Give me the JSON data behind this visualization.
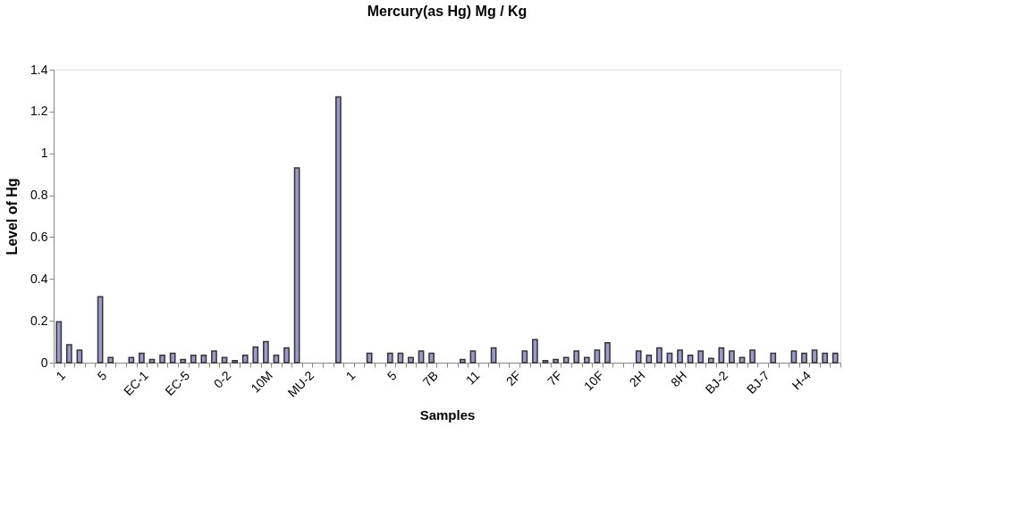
{
  "chart_data": {
    "type": "bar",
    "title": "Mercury(as Hg) Mg / Kg",
    "xlabel": "Samples",
    "ylabel": "Level of Hg",
    "categories": [
      "1",
      null,
      null,
      null,
      "5",
      null,
      null,
      null,
      "EC-1",
      null,
      null,
      null,
      "EC-5",
      null,
      null,
      null,
      "0-2",
      null,
      null,
      null,
      "10M",
      null,
      null,
      null,
      "MU-2",
      null,
      null,
      null,
      "1",
      null,
      null,
      null,
      "5",
      null,
      null,
      null,
      "7B",
      null,
      null,
      null,
      "11",
      null,
      null,
      null,
      "2F",
      null,
      null,
      null,
      "7F",
      null,
      null,
      null,
      "10F",
      null,
      null,
      null,
      "2H",
      null,
      null,
      null,
      "8H",
      null,
      null,
      null,
      "BJ-2",
      null,
      null,
      null,
      "BJ-7",
      null,
      null,
      null,
      "H-4",
      null,
      null,
      null
    ],
    "values": [
      0.195,
      0.085,
      0.06,
      null,
      0.315,
      0.025,
      null,
      0.025,
      0.045,
      0.015,
      0.035,
      0.045,
      0.015,
      0.035,
      0.035,
      0.055,
      0.025,
      0.01,
      0.035,
      0.075,
      0.1,
      0.035,
      0.07,
      0.93,
      null,
      null,
      null,
      1.27,
      null,
      null,
      0.045,
      null,
      0.045,
      0.045,
      0.025,
      0.055,
      0.045,
      null,
      null,
      0.015,
      0.055,
      null,
      0.07,
      null,
      null,
      0.055,
      0.11,
      0.01,
      0.015,
      0.025,
      0.055,
      0.025,
      0.06,
      0.095,
      null,
      null,
      0.055,
      0.035,
      0.07,
      0.045,
      0.06,
      0.035,
      0.055,
      0.02,
      0.07,
      0.055,
      0.025,
      0.06,
      null,
      0.045,
      null,
      0.055,
      0.045,
      0.06,
      0.045,
      0.045
    ],
    "color": "#9999cc",
    "ylim": [
      0,
      1.4
    ],
    "yticks": [
      0,
      0.2,
      0.4,
      0.6,
      0.8,
      1,
      1.2,
      1.4
    ],
    "grid": false
  }
}
